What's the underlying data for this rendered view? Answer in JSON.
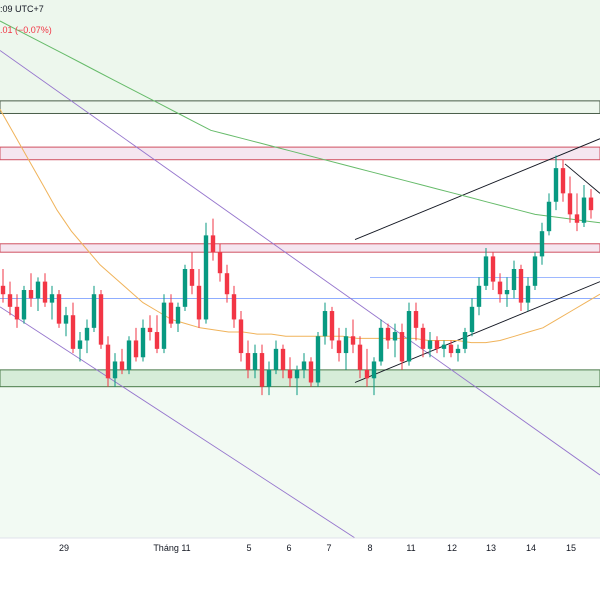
{
  "header": {
    "time_text": ":09 UTC+7",
    "change_text": ".01 (−0.07%)"
  },
  "colors": {
    "up": "#089981",
    "down": "#f23645",
    "zone_green": "#e8f5e9",
    "zone_red": "#f5e6f0",
    "ma_long": "#66bb6a",
    "ma_short": "#f0b35a",
    "channel": "#9575cd",
    "trendline": "#131722",
    "hline": "#2962ff"
  },
  "chart_data": {
    "type": "candlestick",
    "x_tick_labels": [
      "29",
      "Tháng 11",
      "5",
      "6",
      "7",
      "8",
      "11",
      "12",
      "13",
      "14",
      "15"
    ],
    "candles": [
      {
        "o": 40,
        "h": 44,
        "l": 36,
        "c": 38
      },
      {
        "o": 38,
        "h": 41,
        "l": 33,
        "c": 35
      },
      {
        "o": 35,
        "h": 38,
        "l": 30,
        "c": 32
      },
      {
        "o": 32,
        "h": 40,
        "l": 31,
        "c": 39
      },
      {
        "o": 39,
        "h": 43,
        "l": 35,
        "c": 37
      },
      {
        "o": 37,
        "h": 42,
        "l": 34,
        "c": 41
      },
      {
        "o": 41,
        "h": 43,
        "l": 35,
        "c": 36
      },
      {
        "o": 36,
        "h": 40,
        "l": 32,
        "c": 38
      },
      {
        "o": 38,
        "h": 39,
        "l": 30,
        "c": 31
      },
      {
        "o": 31,
        "h": 35,
        "l": 28,
        "c": 33
      },
      {
        "o": 33,
        "h": 36,
        "l": 24,
        "c": 25
      },
      {
        "o": 25,
        "h": 29,
        "l": 22,
        "c": 27
      },
      {
        "o": 27,
        "h": 32,
        "l": 24,
        "c": 30
      },
      {
        "o": 30,
        "h": 40,
        "l": 29,
        "c": 38
      },
      {
        "o": 38,
        "h": 39,
        "l": 25,
        "c": 26
      },
      {
        "o": 26,
        "h": 28,
        "l": 16,
        "c": 18
      },
      {
        "o": 18,
        "h": 24,
        "l": 16,
        "c": 22
      },
      {
        "o": 22,
        "h": 25,
        "l": 19,
        "c": 20
      },
      {
        "o": 20,
        "h": 28,
        "l": 19,
        "c": 27
      },
      {
        "o": 27,
        "h": 30,
        "l": 22,
        "c": 23
      },
      {
        "o": 23,
        "h": 32,
        "l": 22,
        "c": 30
      },
      {
        "o": 30,
        "h": 33,
        "l": 27,
        "c": 29
      },
      {
        "o": 29,
        "h": 33,
        "l": 24,
        "c": 25
      },
      {
        "o": 25,
        "h": 38,
        "l": 24,
        "c": 36
      },
      {
        "o": 36,
        "h": 38,
        "l": 30,
        "c": 31
      },
      {
        "o": 31,
        "h": 36,
        "l": 29,
        "c": 35
      },
      {
        "o": 35,
        "h": 45,
        "l": 34,
        "c": 44
      },
      {
        "o": 44,
        "h": 48,
        "l": 38,
        "c": 40
      },
      {
        "o": 40,
        "h": 44,
        "l": 30,
        "c": 32
      },
      {
        "o": 32,
        "h": 55,
        "l": 31,
        "c": 52
      },
      {
        "o": 52,
        "h": 56,
        "l": 46,
        "c": 48
      },
      {
        "o": 48,
        "h": 50,
        "l": 41,
        "c": 43
      },
      {
        "o": 43,
        "h": 45,
        "l": 36,
        "c": 38
      },
      {
        "o": 38,
        "h": 40,
        "l": 30,
        "c": 32
      },
      {
        "o": 32,
        "h": 34,
        "l": 22,
        "c": 24
      },
      {
        "o": 24,
        "h": 27,
        "l": 18,
        "c": 20
      },
      {
        "o": 20,
        "h": 26,
        "l": 18,
        "c": 24
      },
      {
        "o": 24,
        "h": 26,
        "l": 14,
        "c": 16
      },
      {
        "o": 16,
        "h": 22,
        "l": 14,
        "c": 20
      },
      {
        "o": 20,
        "h": 27,
        "l": 19,
        "c": 25
      },
      {
        "o": 25,
        "h": 26,
        "l": 18,
        "c": 20
      },
      {
        "o": 20,
        "h": 23,
        "l": 16,
        "c": 18
      },
      {
        "o": 18,
        "h": 21,
        "l": 14,
        "c": 20
      },
      {
        "o": 20,
        "h": 24,
        "l": 18,
        "c": 22
      },
      {
        "o": 22,
        "h": 23,
        "l": 16,
        "c": 17
      },
      {
        "o": 17,
        "h": 29,
        "l": 16,
        "c": 28
      },
      {
        "o": 28,
        "h": 36,
        "l": 26,
        "c": 34
      },
      {
        "o": 34,
        "h": 35,
        "l": 25,
        "c": 27
      },
      {
        "o": 27,
        "h": 30,
        "l": 22,
        "c": 24
      },
      {
        "o": 24,
        "h": 30,
        "l": 20,
        "c": 28
      },
      {
        "o": 28,
        "h": 32,
        "l": 24,
        "c": 26
      },
      {
        "o": 26,
        "h": 28,
        "l": 18,
        "c": 20
      },
      {
        "o": 20,
        "h": 25,
        "l": 16,
        "c": 18
      },
      {
        "o": 18,
        "h": 23,
        "l": 14,
        "c": 22
      },
      {
        "o": 22,
        "h": 32,
        "l": 21,
        "c": 30
      },
      {
        "o": 30,
        "h": 31,
        "l": 25,
        "c": 27
      },
      {
        "o": 27,
        "h": 31,
        "l": 23,
        "c": 29
      },
      {
        "o": 29,
        "h": 31,
        "l": 20,
        "c": 22
      },
      {
        "o": 22,
        "h": 36,
        "l": 21,
        "c": 34
      },
      {
        "o": 34,
        "h": 36,
        "l": 27,
        "c": 30
      },
      {
        "o": 30,
        "h": 31,
        "l": 23,
        "c": 25
      },
      {
        "o": 25,
        "h": 29,
        "l": 23,
        "c": 27
      },
      {
        "o": 27,
        "h": 28,
        "l": 24,
        "c": 25
      },
      {
        "o": 25,
        "h": 27,
        "l": 23,
        "c": 26
      },
      {
        "o": 26,
        "h": 27,
        "l": 23,
        "c": 24
      },
      {
        "o": 24,
        "h": 26,
        "l": 22,
        "c": 25
      },
      {
        "o": 25,
        "h": 30,
        "l": 24,
        "c": 29
      },
      {
        "o": 29,
        "h": 37,
        "l": 28,
        "c": 35
      },
      {
        "o": 35,
        "h": 42,
        "l": 33,
        "c": 40
      },
      {
        "o": 40,
        "h": 49,
        "l": 39,
        "c": 47
      },
      {
        "o": 47,
        "h": 48,
        "l": 39,
        "c": 41
      },
      {
        "o": 41,
        "h": 43,
        "l": 36,
        "c": 38
      },
      {
        "o": 38,
        "h": 42,
        "l": 35,
        "c": 39
      },
      {
        "o": 39,
        "h": 46,
        "l": 37,
        "c": 44
      },
      {
        "o": 44,
        "h": 45,
        "l": 34,
        "c": 36
      },
      {
        "o": 36,
        "h": 42,
        "l": 34,
        "c": 40
      },
      {
        "o": 40,
        "h": 48,
        "l": 39,
        "c": 47
      },
      {
        "o": 47,
        "h": 55,
        "l": 45,
        "c": 53
      },
      {
        "o": 53,
        "h": 62,
        "l": 52,
        "c": 60
      },
      {
        "o": 60,
        "h": 71,
        "l": 58,
        "c": 68
      },
      {
        "o": 68,
        "h": 70,
        "l": 60,
        "c": 62
      },
      {
        "o": 62,
        "h": 66,
        "l": 55,
        "c": 57
      },
      {
        "o": 57,
        "h": 62,
        "l": 53,
        "c": 55
      },
      {
        "o": 55,
        "h": 64,
        "l": 54,
        "c": 61
      },
      {
        "o": 61,
        "h": 63,
        "l": 56,
        "c": 58
      }
    ],
    "ma_long": [
      103,
      101,
      99,
      97,
      95,
      93,
      91,
      89,
      87,
      85,
      83,
      81,
      79,
      77,
      76,
      75,
      74,
      73,
      72,
      71,
      70,
      69,
      68,
      67,
      66,
      65,
      64,
      63,
      62,
      61,
      60,
      59,
      58,
      57,
      56.5,
      56,
      55.5,
      55
    ],
    "ma_short": [
      82,
      76,
      70,
      64,
      58,
      53,
      49,
      45,
      42,
      39,
      36,
      34,
      32,
      31,
      30,
      29.5,
      29,
      29,
      28.5,
      28.5,
      28,
      28,
      28,
      28,
      28,
      27.5,
      27.5,
      27.5,
      27.5,
      27.5,
      27,
      27,
      27,
      26.5,
      26.5,
      27,
      28,
      29,
      30,
      32,
      34,
      36,
      38
    ],
    "support_zone": [
      16,
      20
    ],
    "resistance_zone_low": [
      48,
      50
    ],
    "resistance_zone_high": [
      70,
      73
    ],
    "top_band": [
      81,
      84
    ],
    "top_zone": [
      81,
      108
    ],
    "bottom_zone": [
      -20,
      20
    ],
    "hline_level": 37,
    "hline_level_2": 42,
    "ylim": [
      -20,
      108
    ]
  }
}
